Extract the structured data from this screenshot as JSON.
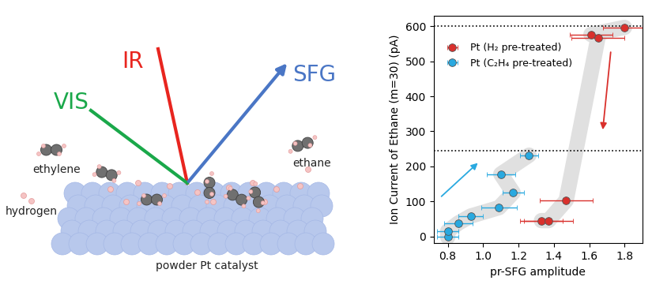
{
  "chart_data": {
    "type": "scatter",
    "x_label": "pr-SFG amplitude",
    "y_label": "Ion Current of Ethane (m=30) (pA)",
    "xlim": [
      0.72,
      1.9
    ],
    "xticks": [
      0.8,
      1.0,
      1.2,
      1.4,
      1.6,
      1.8
    ],
    "ylim": [
      -20,
      630
    ],
    "yticks": [
      0,
      100,
      200,
      300,
      400,
      500,
      600
    ],
    "grid": false,
    "legend": "upper left",
    "marker": "o",
    "hlines": [
      600,
      245
    ],
    "series": [
      {
        "name": "Pt (H₂ pre-treated)",
        "color": "#d9302c",
        "x": [
          1.33,
          1.37,
          1.47,
          1.65,
          1.61,
          1.8
        ],
        "values": [
          45,
          45,
          103,
          568,
          577,
          597
        ],
        "xerr": [
          0.12,
          0.14,
          0.15,
          0.15,
          0.12,
          0.12
        ]
      },
      {
        "name": "Pt (C₂H₄ pre-treated)",
        "color": "#29a9e0",
        "x": [
          0.8,
          0.8,
          0.86,
          0.93,
          1.09,
          1.17,
          1.1,
          1.26
        ],
        "values": [
          -2,
          15,
          38,
          58,
          82,
          125,
          178,
          232
        ],
        "xerr": [
          0.06,
          0.06,
          0.08,
          0.07,
          0.1,
          0.06,
          0.08,
          0.05
        ]
      }
    ]
  },
  "diagram": {
    "beams": [
      "IR",
      "VIS",
      "SFG"
    ],
    "labels": [
      "ethylene",
      "hydrogen",
      "ethane",
      "powder Pt catalyst"
    ]
  }
}
